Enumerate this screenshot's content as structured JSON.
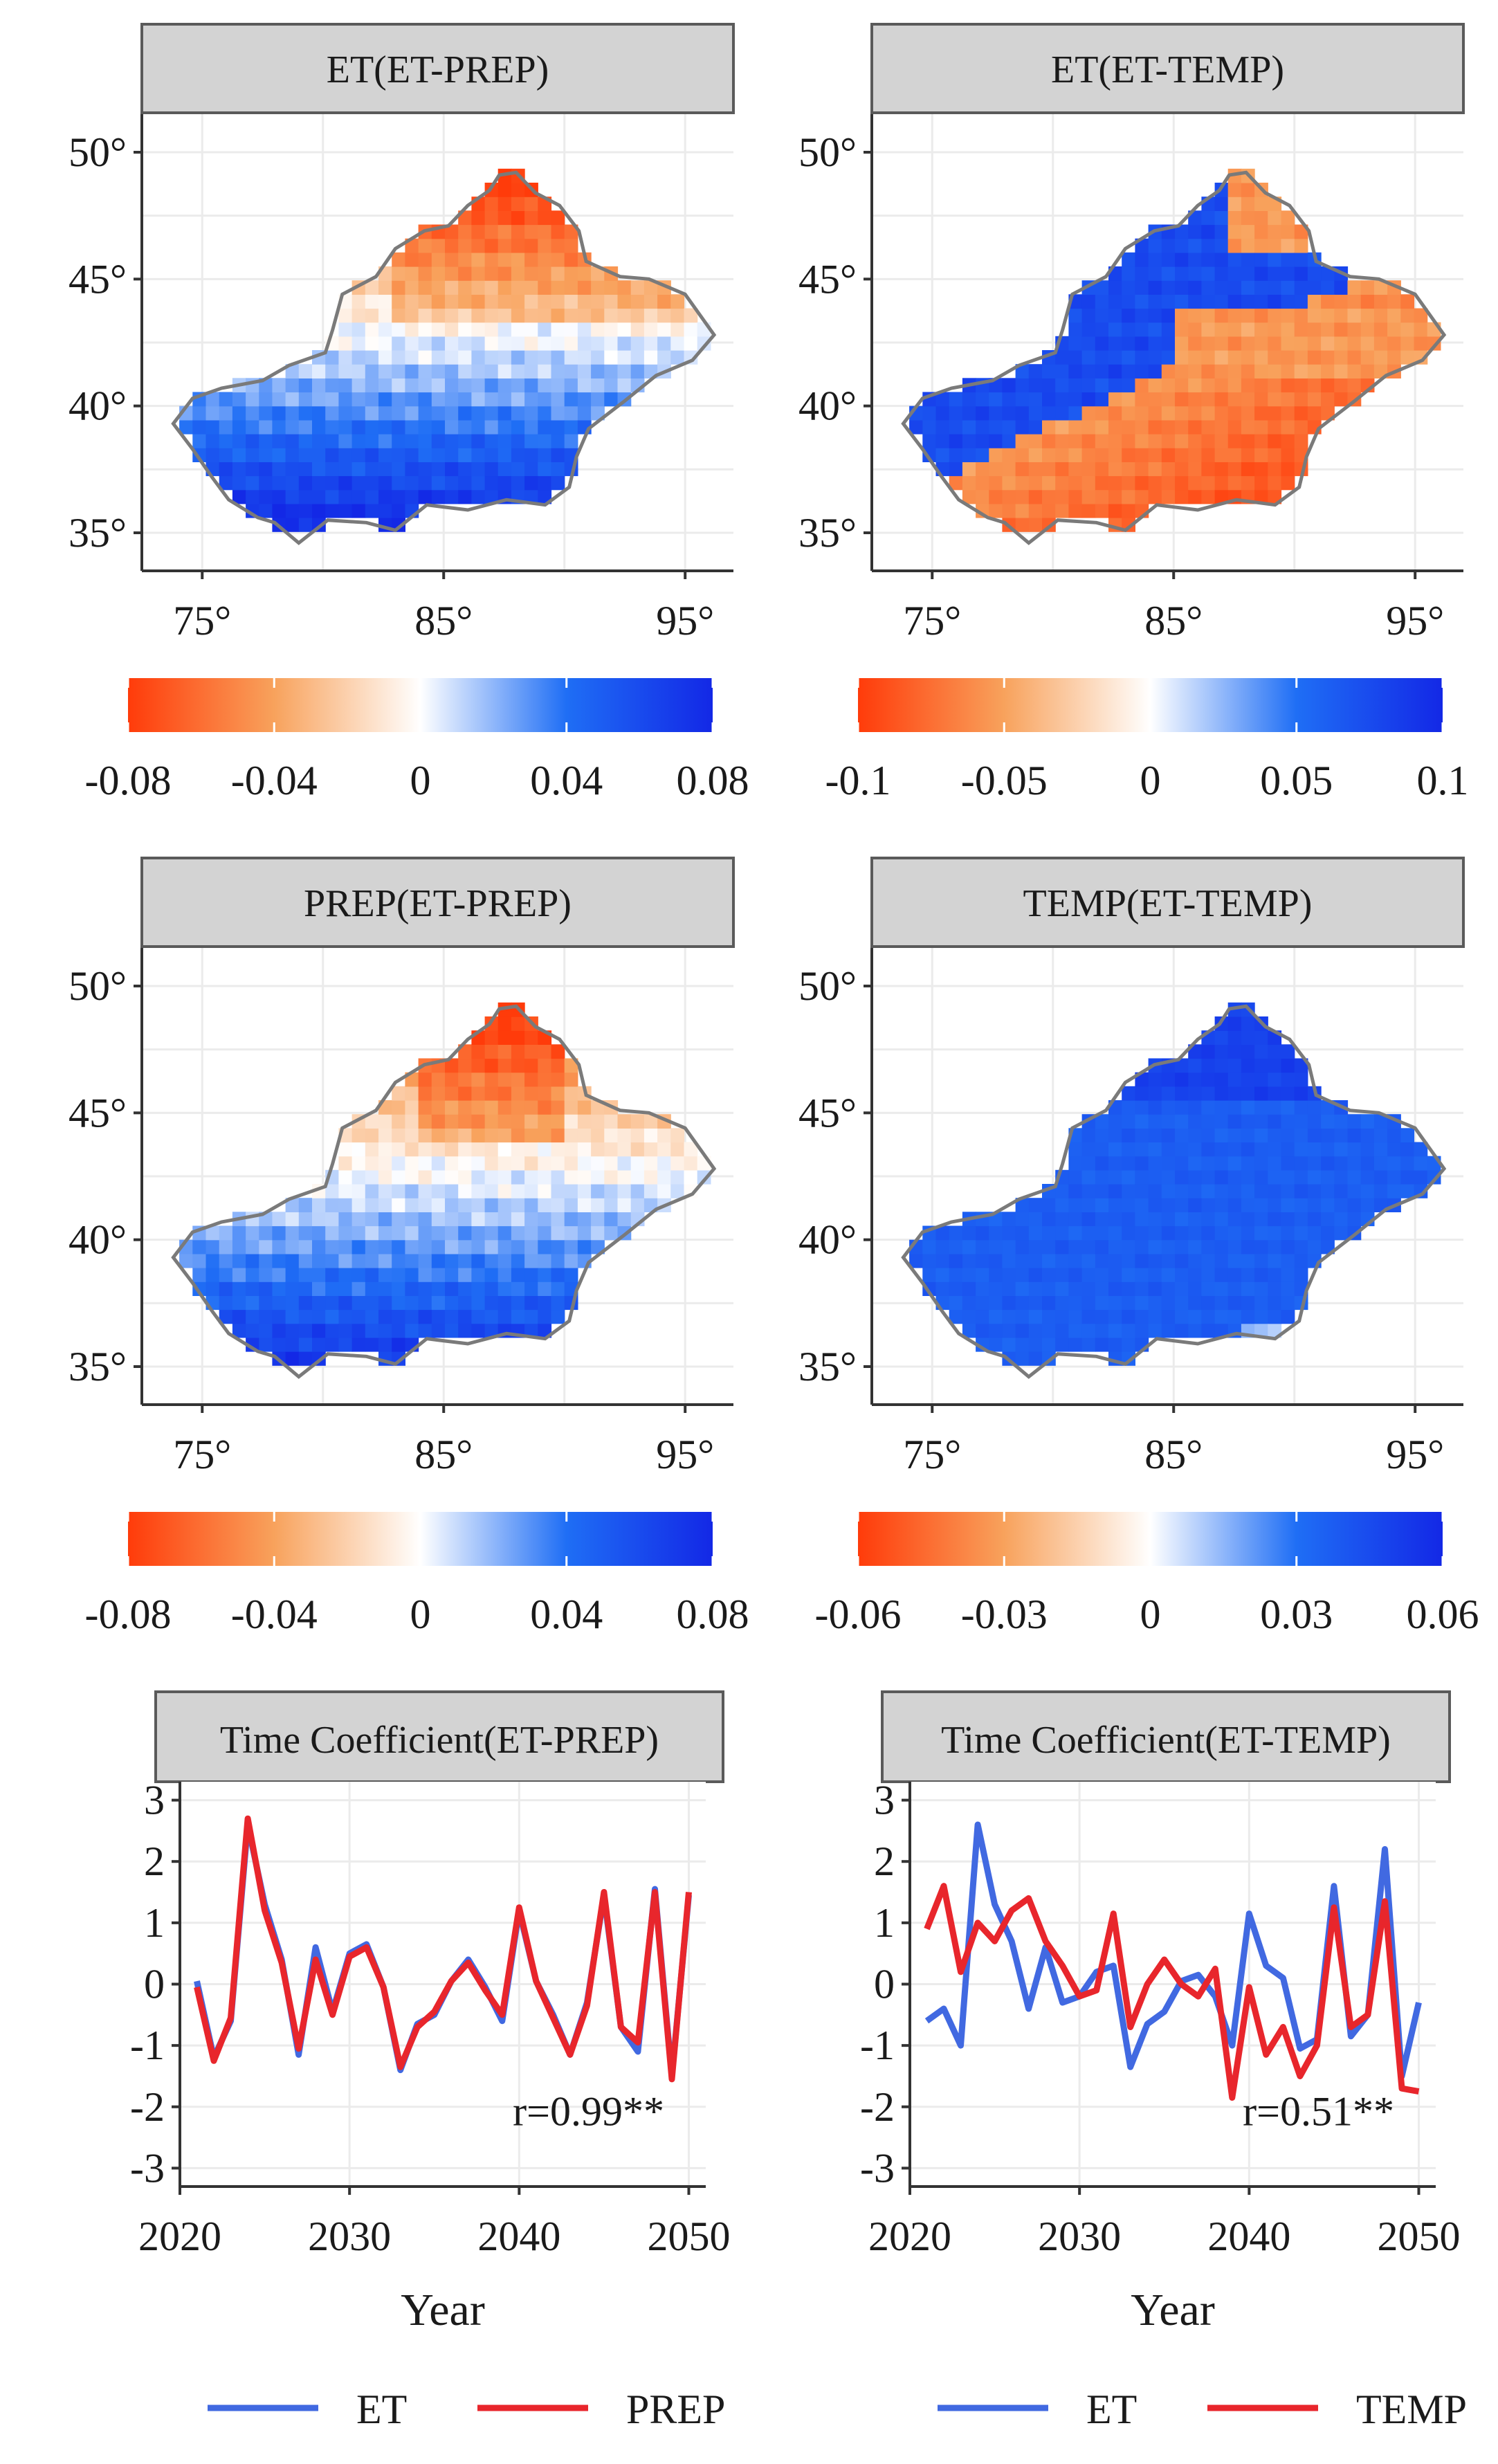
{
  "colors": {
    "negative_end": "#ff3b0a",
    "negative_mid": "#f8a25c",
    "zero": "#ffffff",
    "positive_mid": "#1f6ef5",
    "positive_end": "#1328e6",
    "strip_bg": "#d3d3d3",
    "strip_border": "#5a5a5a",
    "boundary": "#7a7a7a",
    "grid": "#ebebeb",
    "et_line": "#4169e1",
    "prep_line": "#e8262c",
    "temp_line": "#e8262c"
  },
  "maps": [
    {
      "title": "ET(ET-PREP)",
      "lon_ticks": [
        "75°",
        "85°",
        "95°"
      ],
      "lat_ticks": [
        "50°",
        "45°",
        "40°",
        "35°"
      ],
      "colorbar": {
        "range": [
          -0.08,
          0.08
        ],
        "tick_labels": [
          "-0.08",
          "-0.04",
          "0",
          "0.04",
          "0.08"
        ]
      },
      "pattern": "prep-like"
    },
    {
      "title": "ET(ET-TEMP)",
      "lon_ticks": [
        "75°",
        "85°",
        "95°"
      ],
      "lat_ticks": [
        "50°",
        "45°",
        "40°",
        "35°"
      ],
      "colorbar": {
        "range": [
          -0.1,
          0.1
        ],
        "tick_labels": [
          "-0.1",
          "-0.05",
          "0",
          "0.05",
          "0.1"
        ]
      },
      "pattern": "temp-et"
    },
    {
      "title": "PREP(ET-PREP)",
      "lon_ticks": [
        "75°",
        "85°",
        "95°"
      ],
      "lat_ticks": [
        "50°",
        "45°",
        "40°",
        "35°"
      ],
      "colorbar": {
        "range": [
          -0.08,
          0.08
        ],
        "tick_labels": [
          "-0.08",
          "-0.04",
          "0",
          "0.04",
          "0.08"
        ]
      },
      "pattern": "prep-like2"
    },
    {
      "title": "TEMP(ET-TEMP)",
      "lon_ticks": [
        "75°",
        "85°",
        "95°"
      ],
      "lat_ticks": [
        "50°",
        "45°",
        "40°",
        "35°"
      ],
      "colorbar": {
        "range": [
          -0.06,
          0.06
        ],
        "tick_labels": [
          "-0.06",
          "-0.03",
          "0",
          "0.03",
          "0.06"
        ]
      },
      "pattern": "temp"
    }
  ],
  "chart_data": [
    {
      "type": "line",
      "title": "Time Coefficient(ET-PREP)",
      "xlabel": "Year",
      "ylabel": "",
      "xlim": [
        2020,
        2051
      ],
      "ylim": [
        -3.3,
        3.3
      ],
      "x_ticks": [
        2020,
        2030,
        2040,
        2050
      ],
      "y_ticks": [
        3,
        2,
        1,
        0,
        -1,
        -2,
        -3
      ],
      "x": [
        2021,
        2022,
        2023,
        2024,
        2025,
        2026,
        2027,
        2028,
        2029,
        2030,
        2031,
        2032,
        2033,
        2034,
        2035,
        2036,
        2037,
        2038,
        2039,
        2040,
        2041,
        2042,
        2043,
        2044,
        2045,
        2046,
        2047,
        2048,
        2049,
        2050
      ],
      "series": [
        {
          "name": "ET",
          "color": "#4169e1",
          "values": [
            0.05,
            -1.2,
            -0.6,
            2.6,
            1.3,
            0.4,
            -1.15,
            0.6,
            -0.45,
            0.5,
            0.65,
            -0.05,
            -1.4,
            -0.65,
            -0.5,
            0.05,
            0.4,
            -0.05,
            -0.6,
            1.2,
            0.05,
            -0.5,
            -1.15,
            -0.3,
            1.45,
            -0.7,
            -1.1,
            1.55,
            -1.5,
            1.45
          ]
        },
        {
          "name": "PREP",
          "color": "#e8262c",
          "values": [
            -0.05,
            -1.25,
            -0.55,
            2.7,
            1.2,
            0.35,
            -1.05,
            0.4,
            -0.5,
            0.45,
            0.6,
            -0.05,
            -1.35,
            -0.7,
            -0.45,
            0.05,
            0.35,
            -0.1,
            -0.5,
            1.25,
            0.05,
            -0.55,
            -1.15,
            -0.35,
            1.5,
            -0.7,
            -0.95,
            1.5,
            -1.55,
            1.5
          ]
        }
      ],
      "annotation": "r=0.99**",
      "legend": [
        "ET",
        "PREP"
      ]
    },
    {
      "type": "line",
      "title": "Time Coefficient(ET-TEMP)",
      "xlabel": "Year",
      "ylabel": "",
      "xlim": [
        2020,
        2051
      ],
      "ylim": [
        -3.3,
        3.3
      ],
      "x_ticks": [
        2020,
        2030,
        2040,
        2050
      ],
      "y_ticks": [
        3,
        2,
        1,
        0,
        -1,
        -2,
        -3
      ],
      "x": [
        2021,
        2022,
        2023,
        2024,
        2025,
        2026,
        2027,
        2028,
        2029,
        2030,
        2031,
        2032,
        2033,
        2034,
        2035,
        2036,
        2037,
        2038,
        2039,
        2040,
        2041,
        2042,
        2043,
        2044,
        2045,
        2046,
        2047,
        2048,
        2049,
        2050
      ],
      "series": [
        {
          "name": "ET",
          "color": "#4169e1",
          "values": [
            -0.6,
            -0.4,
            -1.0,
            2.6,
            1.3,
            0.7,
            -0.4,
            0.6,
            -0.3,
            -0.2,
            0.2,
            0.3,
            -1.35,
            -0.65,
            -0.45,
            0.05,
            0.15,
            -0.2,
            -1.0,
            1.15,
            0.3,
            0.1,
            -1.05,
            -0.9,
            1.6,
            -0.85,
            -0.5,
            2.2,
            -1.5,
            -0.3
          ]
        },
        {
          "name": "TEMP",
          "color": "#e8262c",
          "values": [
            0.9,
            1.6,
            0.2,
            1.0,
            0.7,
            1.2,
            1.4,
            0.7,
            0.3,
            -0.2,
            -0.1,
            1.15,
            -0.7,
            0.0,
            0.4,
            0.0,
            -0.2,
            0.25,
            -1.85,
            -0.05,
            -1.15,
            -0.7,
            -1.5,
            -1.0,
            1.25,
            -0.7,
            -0.5,
            1.35,
            -1.7,
            -1.75
          ]
        }
      ],
      "annotation": "r=0.51**",
      "legend": [
        "ET",
        "TEMP"
      ]
    }
  ]
}
